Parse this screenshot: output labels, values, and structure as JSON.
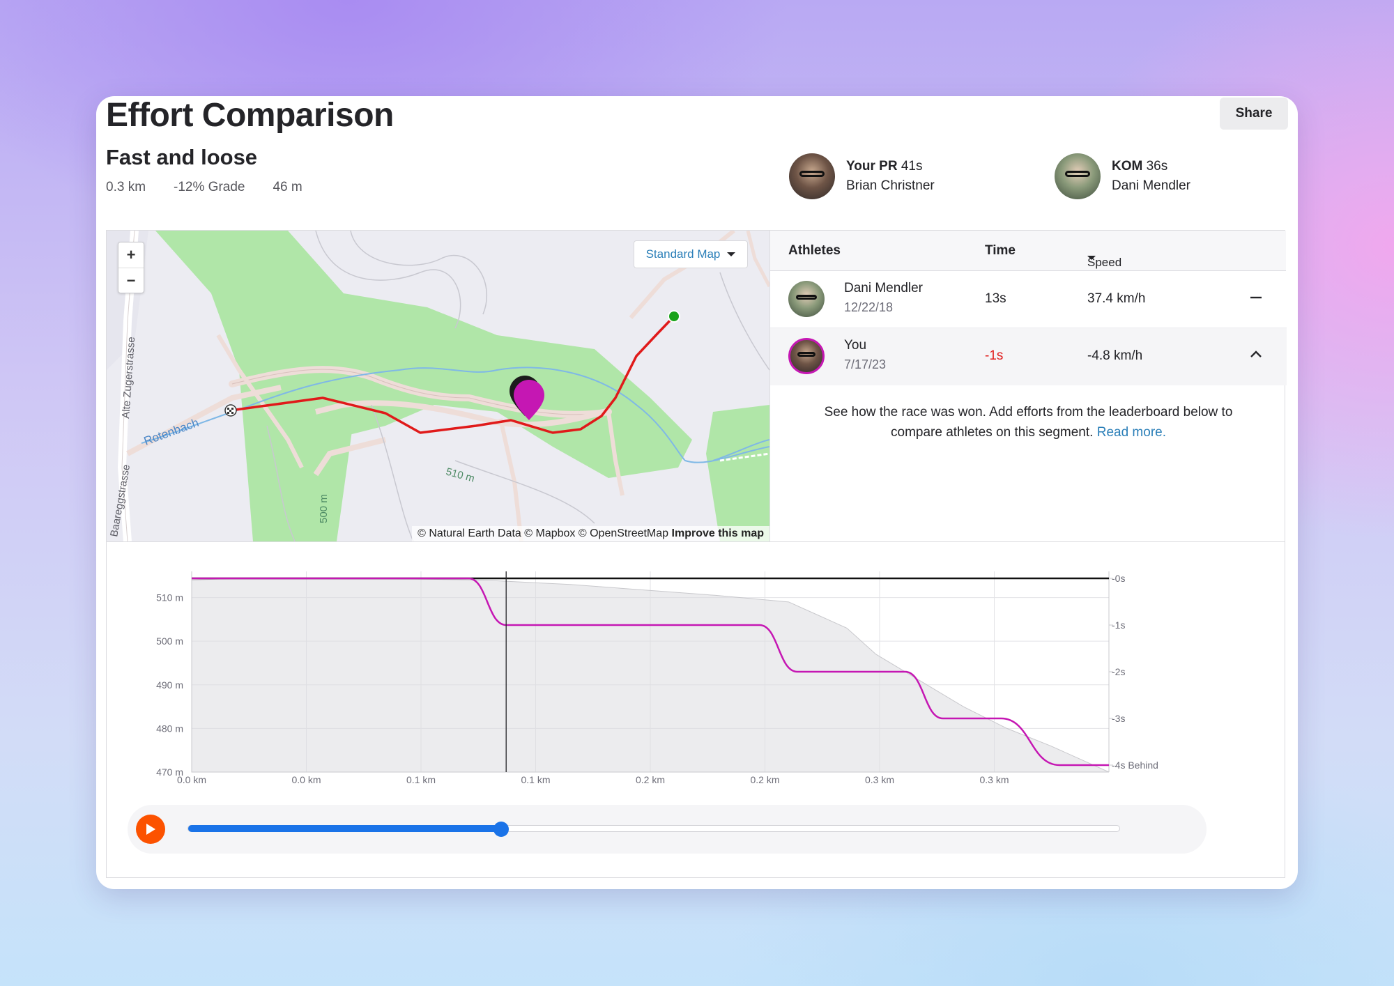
{
  "page": {
    "title": "Effort Comparison",
    "share_label": "Share"
  },
  "segment": {
    "name": "Fast and loose",
    "distance": "0.3 km",
    "grade": "-12% Grade",
    "elevation": "46 m"
  },
  "pr": {
    "label": "Your PR",
    "time": "41s",
    "athlete": "Brian Christner"
  },
  "kom": {
    "label": "KOM",
    "time": "36s",
    "athlete": "Dani Mendler"
  },
  "map": {
    "zoom_in": "+",
    "zoom_out": "−",
    "map_type": "Standard Map",
    "labels": {
      "street1": "Alte Zugerstrasse",
      "street2": "Baareggstrasse",
      "creek": "Rotenbach",
      "contour1": "510 m",
      "contour2": "500 m"
    },
    "attribution": "© Natural Earth Data © Mapbox © OpenStreetMap",
    "improve": "Improve this map",
    "colors": {
      "route": "#e01a1a",
      "you": "#c517b3",
      "start": "#1aa31a",
      "water": "#7fb8e6",
      "forest": "#b0e6a8"
    }
  },
  "leaderboard": {
    "columns": {
      "athletes": "Athletes",
      "time": "Time",
      "speed": "Speed"
    },
    "rows": [
      {
        "name": "Dani Mendler",
        "date": "12/22/18",
        "time": "13s",
        "speed": "37.4 km/h",
        "action": "minus"
      },
      {
        "name": "You",
        "date": "7/17/23",
        "time": "-1s",
        "speed": "-4.8 km/h",
        "action": "chevron-up"
      }
    ],
    "note": "See how the race was won. Add efforts from the leaderboard below to compare athletes on this segment.",
    "read_more": "Read more."
  },
  "chart_data": {
    "type": "line",
    "x_tick_labels": [
      "0.0 km",
      "0.0 km",
      "0.1 km",
      "0.1 km",
      "0.2 km",
      "0.2 km",
      "0.3 km",
      "0.3 km"
    ],
    "y_left_ticks": [
      "510 m",
      "500 m",
      "490 m",
      "480 m",
      "470 m"
    ],
    "y_left_range": [
      470,
      516
    ],
    "y_right_ticks": [
      "-0s",
      "-1s",
      "-2s",
      "-3s",
      "-4s Behind"
    ],
    "y_right_range": [
      0,
      -4
    ],
    "x_range": [
      0,
      0.315
    ],
    "elevation": {
      "x": [
        0,
        0.02,
        0.05,
        0.1,
        0.13,
        0.16,
        0.18,
        0.205,
        0.215,
        0.225,
        0.235,
        0.25,
        0.265,
        0.28,
        0.295,
        0.305,
        0.315
      ],
      "y": [
        514,
        514.5,
        514.5,
        514,
        513,
        511.5,
        510.5,
        509,
        506,
        503,
        497,
        491,
        485,
        480,
        476,
        473,
        470
      ]
    },
    "series": [
      {
        "name": "Dani Mendler",
        "color": "#111111",
        "x": [
          0,
          0.315
        ],
        "y": [
          0,
          0
        ]
      },
      {
        "name": "You",
        "color": "#c517b3",
        "x": [
          0,
          0.095,
          0.108,
          0.195,
          0.208,
          0.245,
          0.258,
          0.278,
          0.298,
          0.315
        ],
        "y": [
          0,
          0,
          -1,
          -1,
          -2,
          -2,
          -3,
          -3,
          -4,
          -4
        ]
      }
    ],
    "cursor_x": 0.108,
    "grid": true
  },
  "player": {
    "progress": 0.336,
    "play_icon": "play-icon"
  }
}
